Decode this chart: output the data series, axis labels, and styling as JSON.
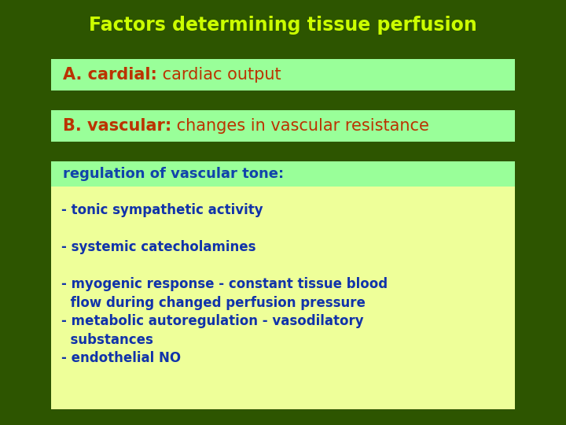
{
  "title": "Factors determining tissue perfusion",
  "title_color": "#CCFF00",
  "title_fontsize": 17,
  "bg_color": "#2D5500",
  "box_a_text_bold": "A. cardial:",
  "box_a_text_normal": " cardiac output",
  "box_a_bg": "#99FF99",
  "box_a_bold_color": "#BB3300",
  "box_a_normal_color": "#BB3300",
  "box_b_text_bold": "B. vascular:",
  "box_b_text_normal": " changes in vascular resistance",
  "box_b_bg": "#99FF99",
  "box_b_bold_color": "#BB3300",
  "box_b_normal_color": "#BB3300",
  "box_c_bg": "#EEFF99",
  "box_c_header_bg": "#99FF99",
  "box_c_header_text": "regulation of vascular tone:",
  "box_c_header_color": "#1144AA",
  "box_c_items": [
    "- tonic sympathetic activity",
    "- systemic catecholamines",
    "- myogenic response - constant tissue blood\n  flow during changed perfusion pressure",
    "- metabolic autoregulation - vasodilatory\n  substances",
    "- endothelial NO"
  ],
  "box_c_text_color": "#1133AA",
  "fontsize_ab": 15,
  "fontsize_c_header": 13,
  "fontsize_c_items": 12
}
